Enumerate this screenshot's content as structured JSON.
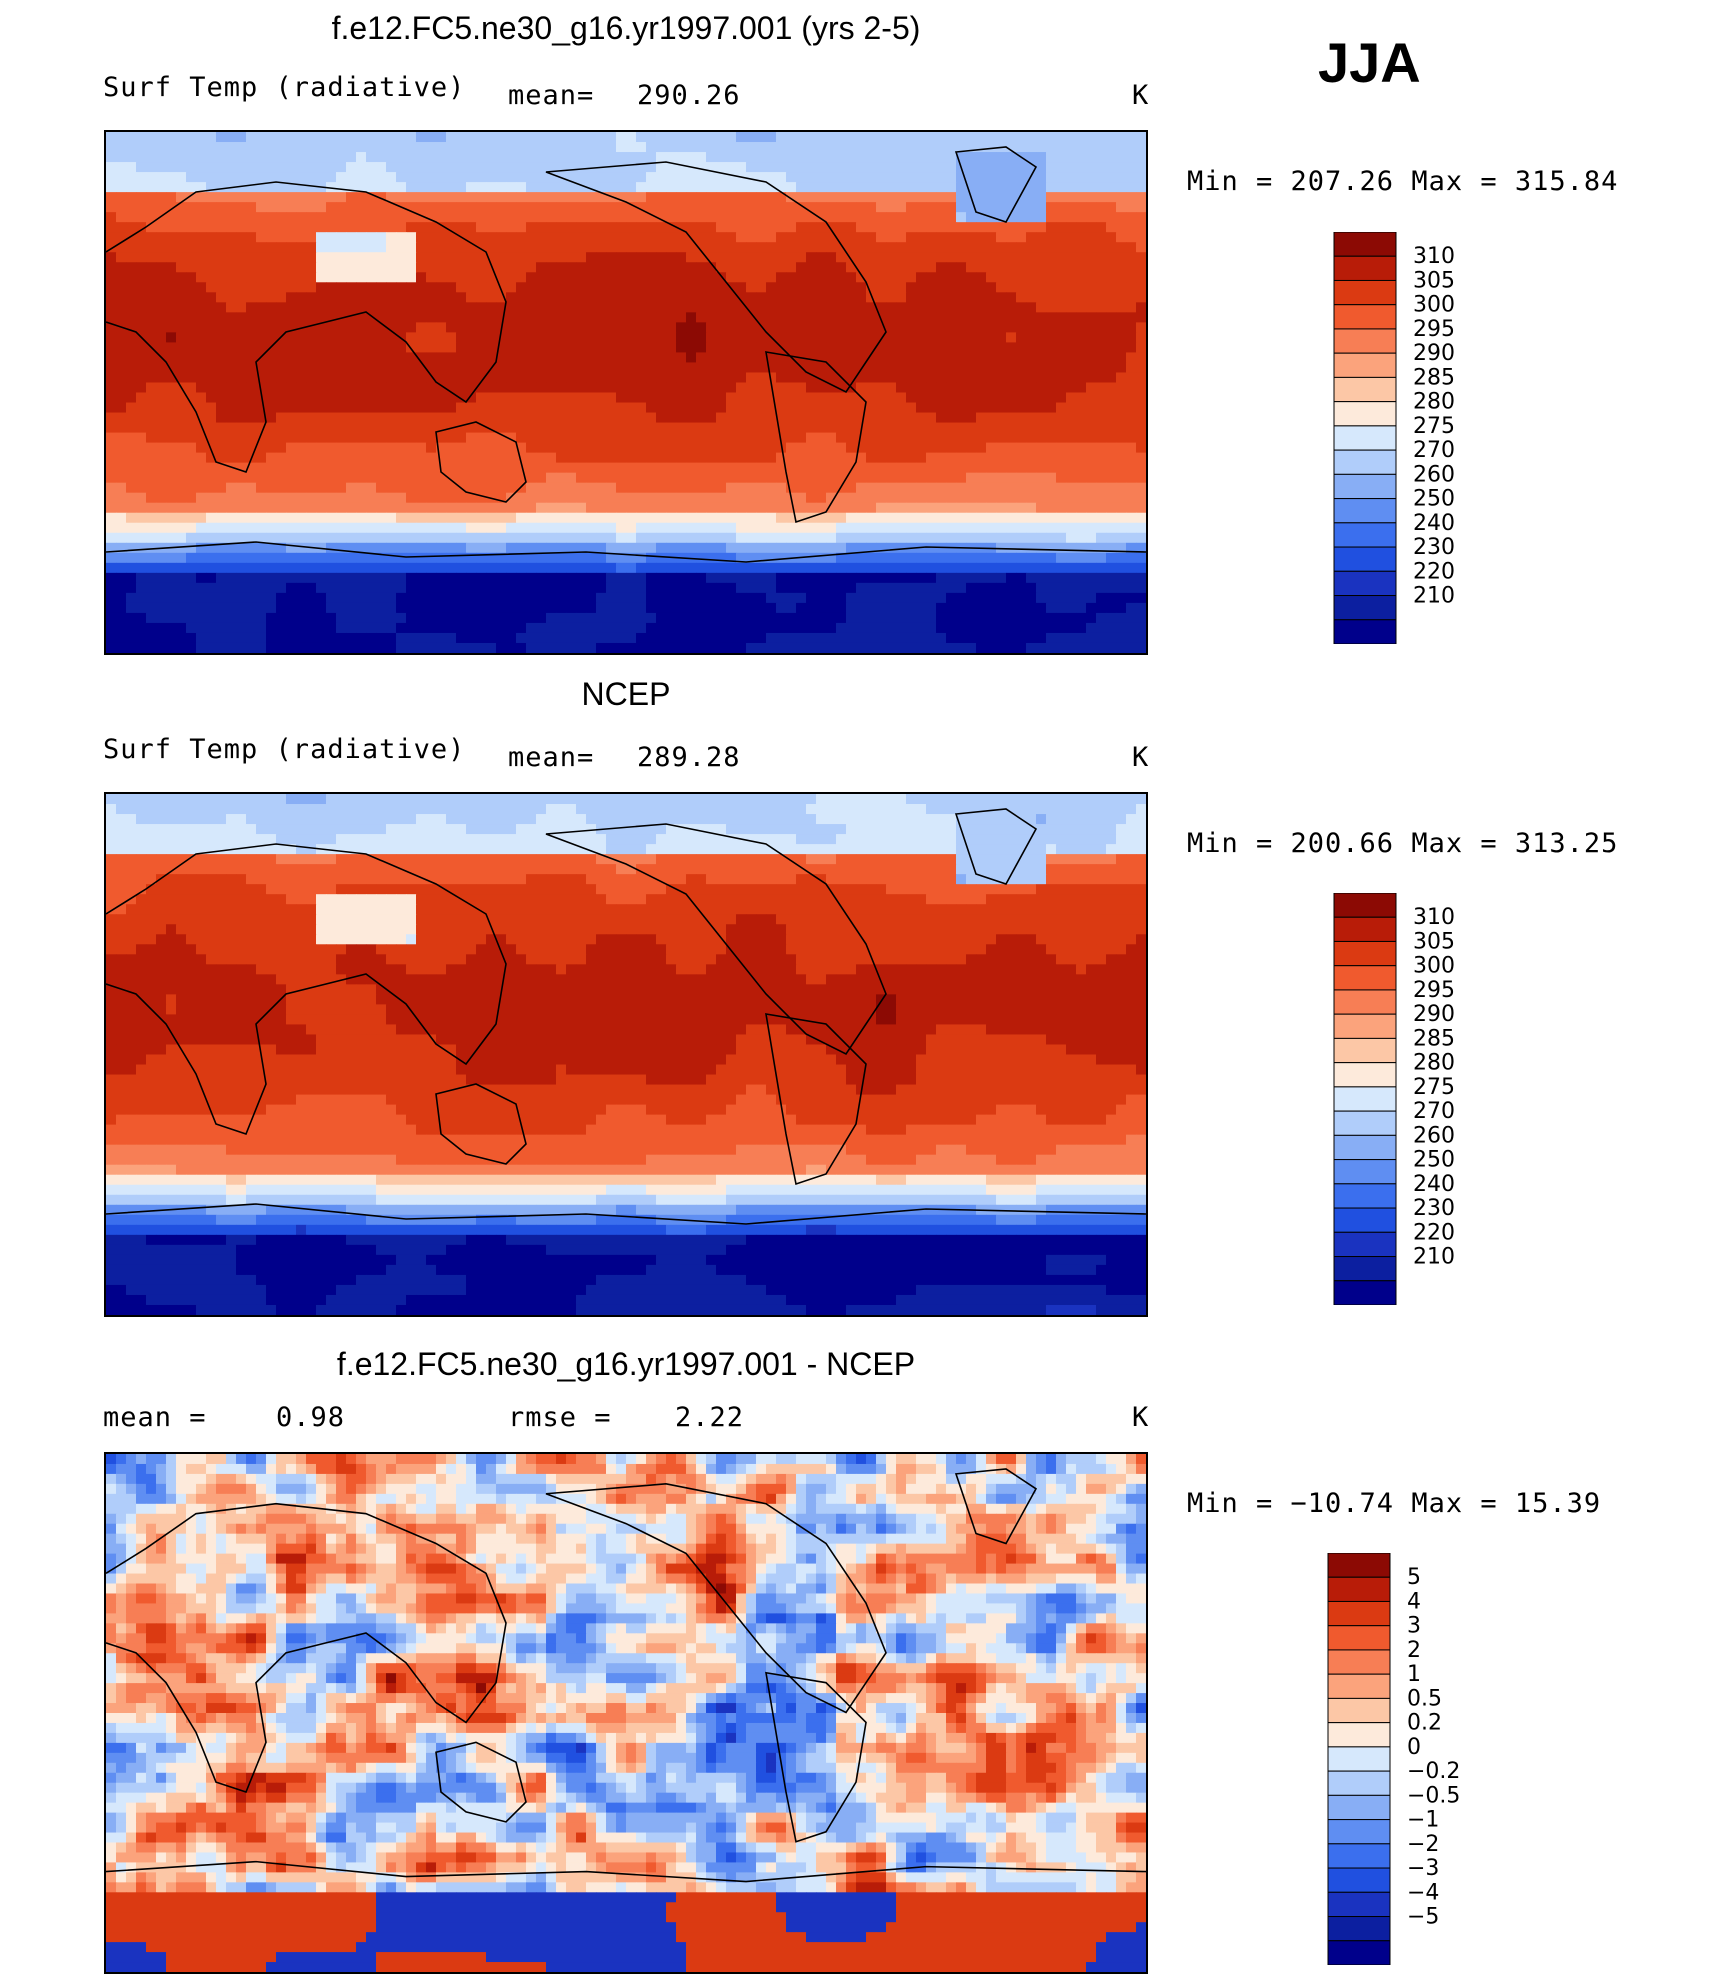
{
  "season": "JJA",
  "units": "K",
  "colors": {
    "abs_scale": [
      "#00008b",
      "#0c1fa0",
      "#1a33c0",
      "#2050e0",
      "#3b6fee",
      "#5f8ef2",
      "#88aef5",
      "#b0cdfa",
      "#d6e8fc",
      "#fdeadb",
      "#fcc7a6",
      "#fba37c",
      "#f77e55",
      "#f05a2e",
      "#db3a12",
      "#b81c08",
      "#8c0a04"
    ],
    "diff_scale": [
      "#00008b",
      "#0c1fa0",
      "#1a33c0",
      "#2050e0",
      "#3b6fee",
      "#5f8ef2",
      "#88aef5",
      "#b0cdfa",
      "#d6e8fc",
      "#fdeadb",
      "#fcc7a6",
      "#fba37c",
      "#f77e55",
      "#f05a2e",
      "#db3a12",
      "#b81c08",
      "#8c0a04"
    ]
  },
  "chart_data": [
    {
      "type": "heatmap",
      "title": "f.e12.FC5.ne30_g16.yr1997.001 (yrs 2-5)",
      "variable": "Surf Temp (radiative)",
      "mean_label": "mean=",
      "mean_value": "290.26",
      "units": "K",
      "min_label": "Min  =  207.26  Max  =  315.84",
      "min": 207.26,
      "max": 315.84,
      "colorbar_ticks": [
        "310",
        "305",
        "300",
        "295",
        "290",
        "285",
        "280",
        "275",
        "270",
        "260",
        "250",
        "240",
        "230",
        "220",
        "210"
      ]
    },
    {
      "type": "heatmap",
      "title": "NCEP",
      "variable": "Surf Temp (radiative)",
      "mean_label": "mean=",
      "mean_value": "289.28",
      "units": "K",
      "min_label": "Min  =  200.66  Max  =  313.25",
      "min": 200.66,
      "max": 313.25,
      "colorbar_ticks": [
        "310",
        "305",
        "300",
        "295",
        "290",
        "285",
        "280",
        "275",
        "270",
        "260",
        "250",
        "240",
        "230",
        "220",
        "210"
      ]
    },
    {
      "type": "heatmap",
      "title": "f.e12.FC5.ne30_g16.yr1997.001 - NCEP",
      "mean_label": "mean  =",
      "mean_value": "0.98",
      "rmse_label": "rmse  =",
      "rmse_value": "2.22",
      "units": "K",
      "min_label": "Min  =  −10.74  Max  =    15.39",
      "min": -10.74,
      "max": 15.39,
      "colorbar_ticks": [
        "5",
        "4",
        "3",
        "2",
        "1",
        "0.5",
        "0.2",
        "0",
        "−0.2",
        "−0.5",
        "−1",
        "−2",
        "−3",
        "−4",
        "−5"
      ]
    }
  ]
}
